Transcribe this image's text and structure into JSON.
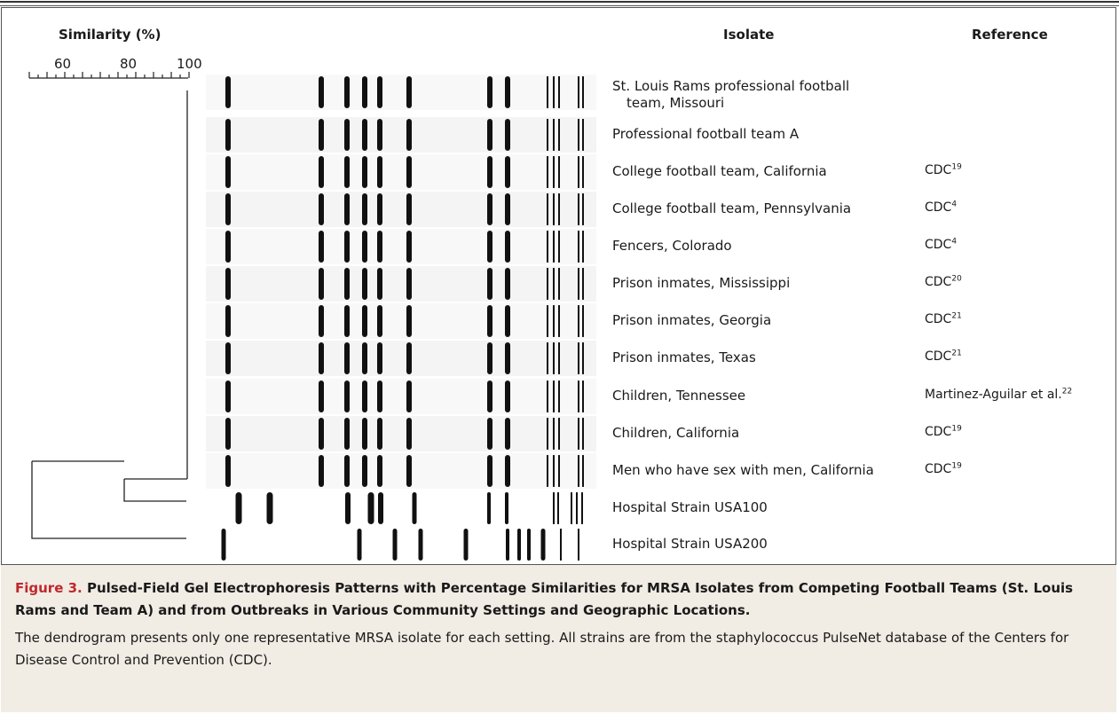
{
  "headers": {
    "similarity": "Similarity (%)",
    "isolate": "Isolate",
    "reference": "Reference"
  },
  "scale_labels": [
    "60",
    "80",
    "100"
  ],
  "rows": [
    {
      "isolate_line1": "St. Louis Rams professional football",
      "isolate_line2": "team, Missouri",
      "ref": "",
      "ref_sup": ""
    },
    {
      "isolate_line1": "Professional football team A",
      "isolate_line2": "",
      "ref": "",
      "ref_sup": ""
    },
    {
      "isolate_line1": "College football team, California",
      "isolate_line2": "",
      "ref": "CDC",
      "ref_sup": "19"
    },
    {
      "isolate_line1": "College football team, Pennsylvania",
      "isolate_line2": "",
      "ref": "CDC",
      "ref_sup": "4"
    },
    {
      "isolate_line1": "Fencers, Colorado",
      "isolate_line2": "",
      "ref": "CDC",
      "ref_sup": "4"
    },
    {
      "isolate_line1": "Prison inmates, Mississippi",
      "isolate_line2": "",
      "ref": "CDC",
      "ref_sup": "20"
    },
    {
      "isolate_line1": "Prison inmates, Georgia",
      "isolate_line2": "",
      "ref": "CDC",
      "ref_sup": "21"
    },
    {
      "isolate_line1": "Prison inmates, Texas",
      "isolate_line2": "",
      "ref": "CDC",
      "ref_sup": "21"
    },
    {
      "isolate_line1": "Children, Tennessee",
      "isolate_line2": "",
      "ref": "Martinez-Aguilar et al.",
      "ref_sup": "22"
    },
    {
      "isolate_line1": "Children, California",
      "isolate_line2": "",
      "ref": "CDC",
      "ref_sup": "19"
    },
    {
      "isolate_line1": "Men who have sex with men, California",
      "isolate_line2": "",
      "ref": "CDC",
      "ref_sup": "19"
    },
    {
      "isolate_line1": "Hospital Strain USA100",
      "isolate_line2": "",
      "ref": "",
      "ref_sup": ""
    },
    {
      "isolate_line1": "Hospital Strain USA200",
      "isolate_line2": "",
      "ref": "",
      "ref_sup": ""
    }
  ],
  "caption": {
    "figure_label": "Figure 3.",
    "title": "Pulsed-Field Gel Electrophoresis Patterns with Percentage Similarities for MRSA Isolates from Competing Football Teams (St. Louis Rams and Team A) and from Outbreaks in Various Community Settings and Geographic Locations.",
    "body": "The dendrogram presents only one representative MRSA isolate for each setting. All strains are from the staphylococcus PulseNet database of the Centers for Disease Control and Prevention (CDC)."
  },
  "colors": {
    "figure_label": "#c0282e",
    "caption_background": "#f1ece4",
    "band": "#111111"
  }
}
